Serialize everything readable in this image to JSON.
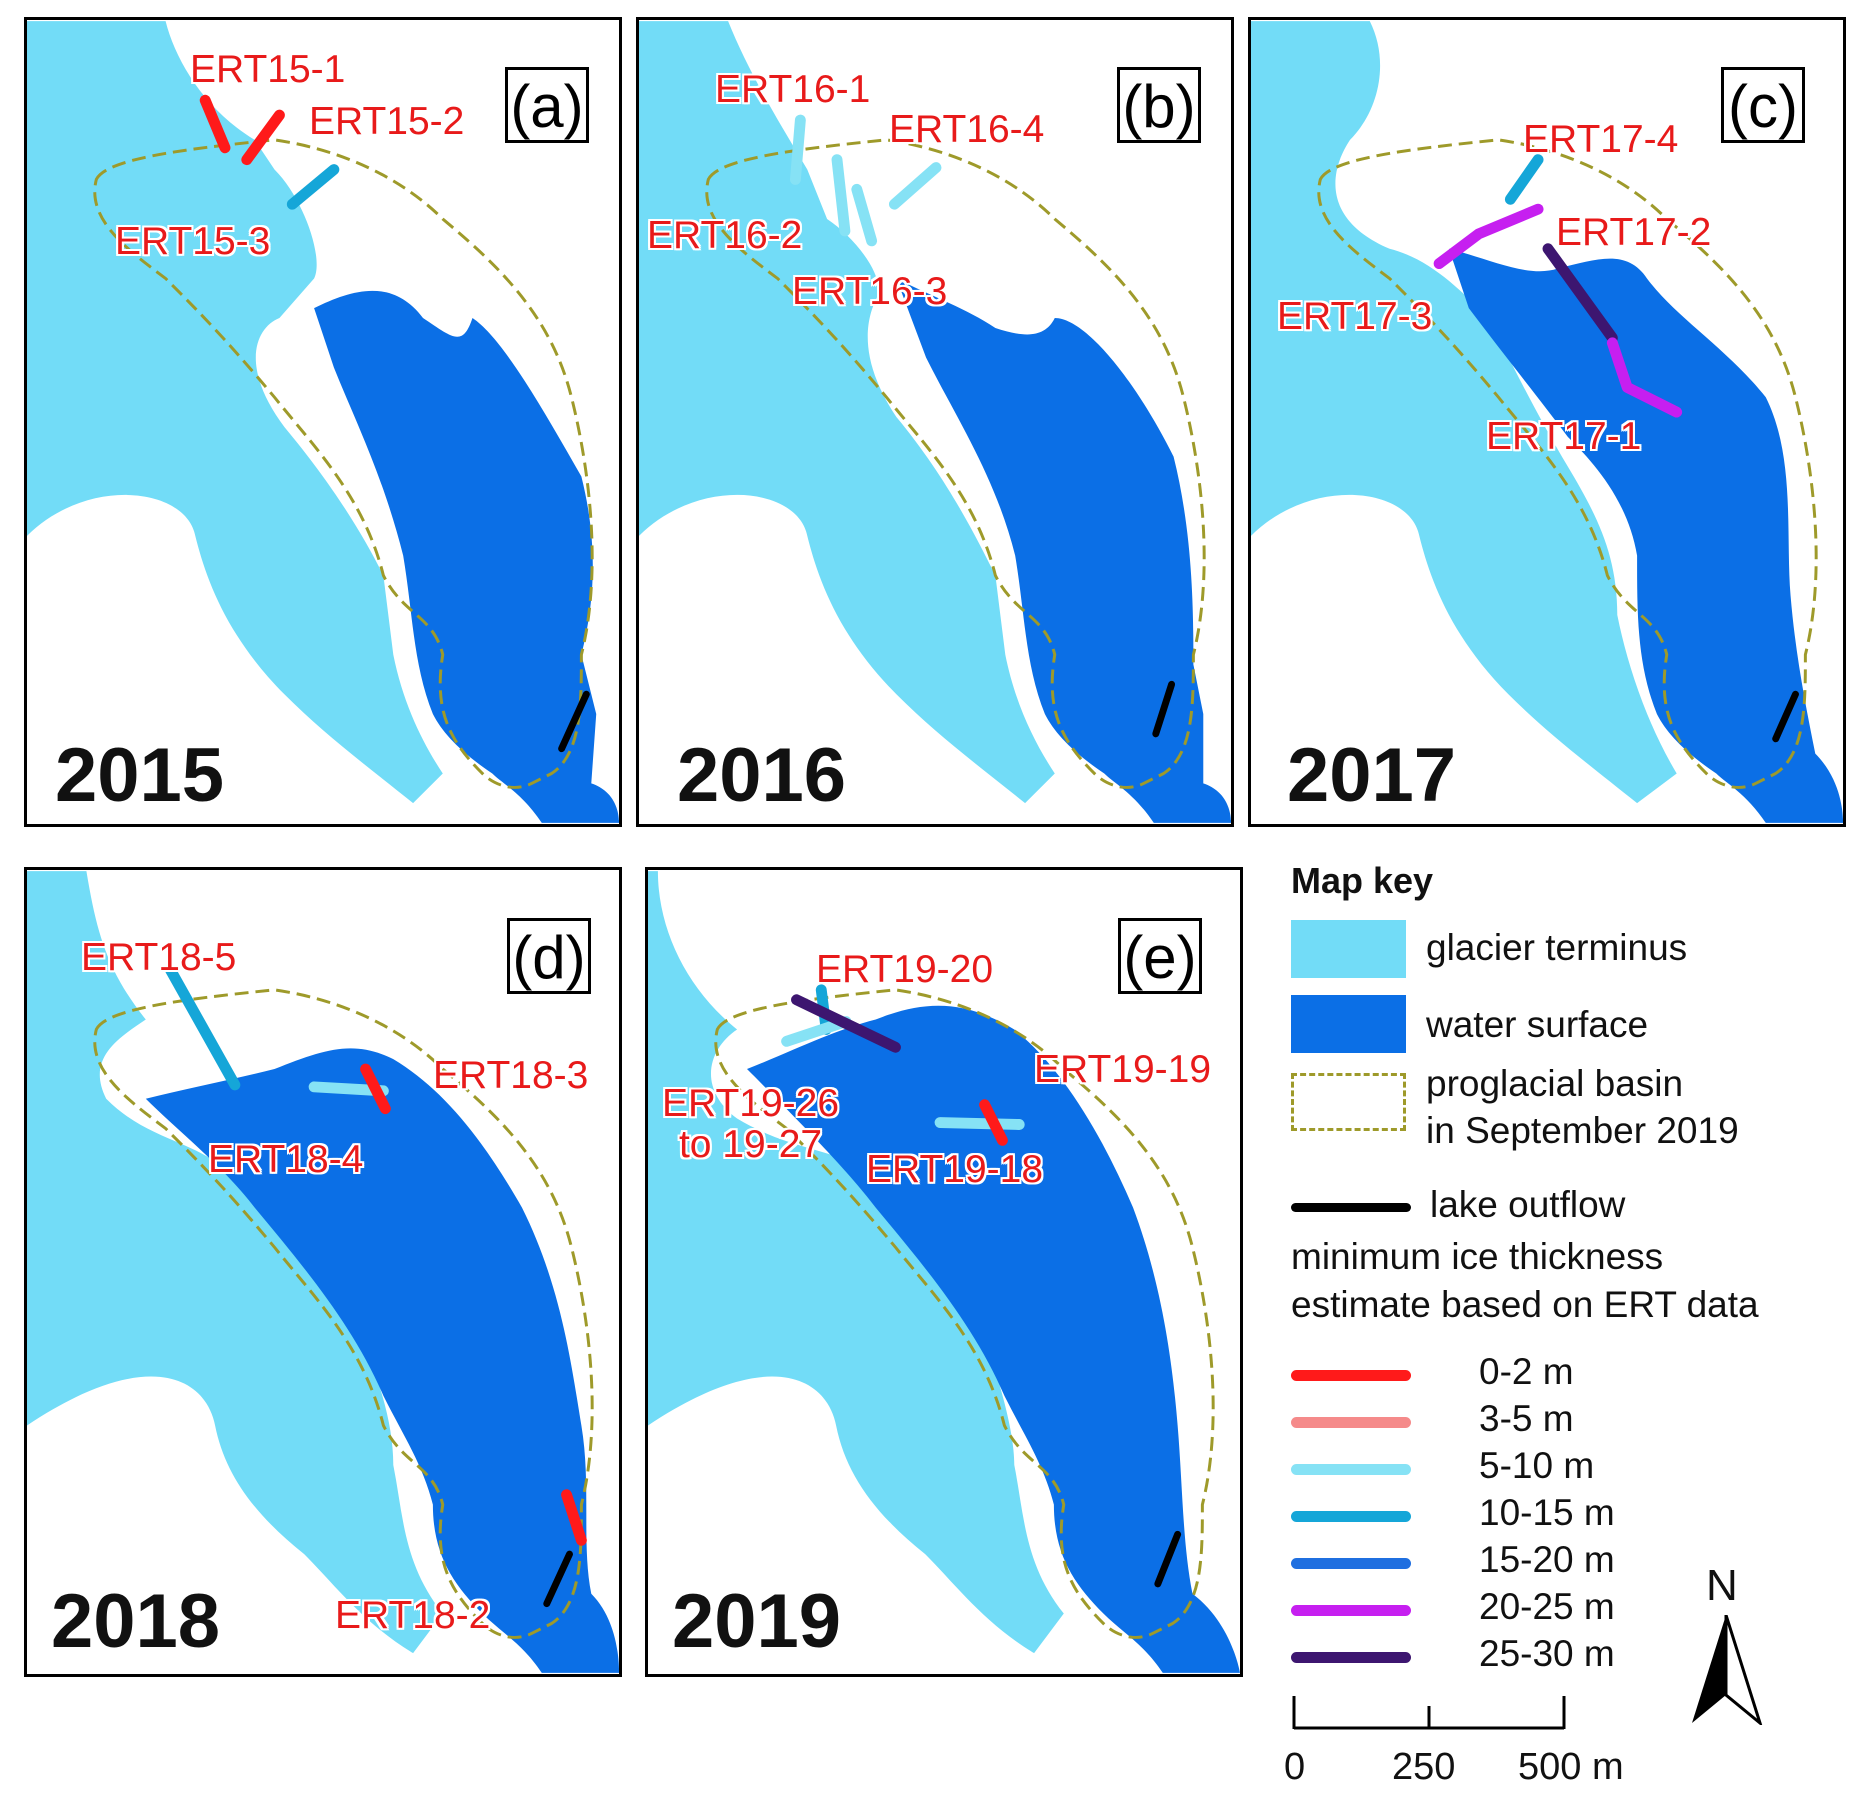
{
  "panels": [
    {
      "id": "a",
      "letter": "(a)",
      "year": "2015",
      "labels": [
        {
          "text": "ERT15-1"
        },
        {
          "text": "ERT15-2"
        },
        {
          "text": "ERT15-3"
        }
      ]
    },
    {
      "id": "b",
      "letter": "(b)",
      "year": "2016",
      "labels": [
        {
          "text": "ERT16-1"
        },
        {
          "text": "ERT16-4"
        },
        {
          "text": "ERT16-2"
        },
        {
          "text": "ERT16-3"
        }
      ]
    },
    {
      "id": "c",
      "letter": "(c)",
      "year": "2017",
      "labels": [
        {
          "text": "ERT17-4"
        },
        {
          "text": "ERT17-2"
        },
        {
          "text": "ERT17-3"
        },
        {
          "text": "ERT17-1"
        }
      ]
    },
    {
      "id": "d",
      "letter": "(d)",
      "year": "2018",
      "labels": [
        {
          "text": "ERT18-5"
        },
        {
          "text": "ERT18-3"
        },
        {
          "text": "ERT18-4"
        },
        {
          "text": "ERT18-2"
        }
      ]
    },
    {
      "id": "e",
      "letter": "(e)",
      "year": "2019",
      "labels": [
        {
          "text": "ERT19-20"
        },
        {
          "text": "ERT19-19"
        },
        {
          "text": "ERT19-26\nto 19-27"
        },
        {
          "text": "ERT19-18"
        }
      ]
    }
  ],
  "colors": {
    "glacier": "#72dcf7",
    "water": "#0b6fe6",
    "basin_outline": "#9e9a2a",
    "outflow": "#000000",
    "label_red": "#e81a1a",
    "t0_2": "#ff1a1a",
    "t3_5": "#f58a8a",
    "t5_10": "#86e2f5",
    "t10_15": "#15a6d8",
    "t15_20": "#1f6fe0",
    "t20_25": "#c61ff0",
    "t25_30": "#3d1670"
  },
  "legend": {
    "title": "Map key",
    "glacier": "glacier terminus",
    "water": "water surface",
    "basin_1": "proglacial basin",
    "basin_2": "in September 2019",
    "outflow": "lake outflow",
    "thickness_1": "minimum ice thickness",
    "thickness_2": "estimate based on ERT data",
    "classes": [
      {
        "label": "0-2 m",
        "color": "#ff1a1a"
      },
      {
        "label": "3-5 m",
        "color": "#f58a8a"
      },
      {
        "label": "5-10 m",
        "color": "#86e2f5"
      },
      {
        "label": "10-15 m",
        "color": "#15a6d8"
      },
      {
        "label": "15-20 m",
        "color": "#1f6fe0"
      },
      {
        "label": "20-25 m",
        "color": "#c61ff0"
      },
      {
        "label": "25-30 m",
        "color": "#3d1670"
      }
    ],
    "north": "N",
    "scale": {
      "ticks": [
        "0",
        "250",
        "500 m"
      ]
    }
  }
}
